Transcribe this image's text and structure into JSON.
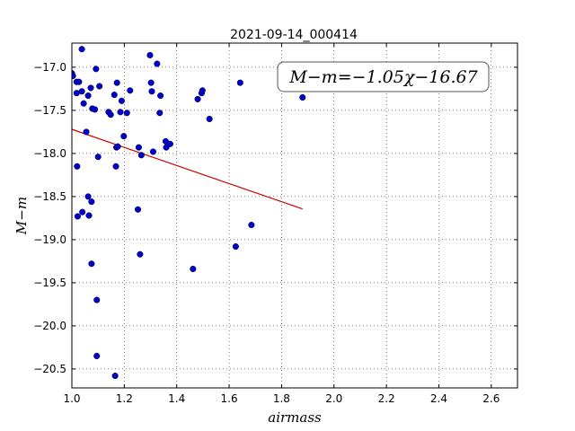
{
  "chart_data": {
    "type": "scatter",
    "title": "2021-09-14_000414",
    "xlabel": "airmass",
    "ylabel": "M−m",
    "annotation": "M−m=−1.05χ−16.67",
    "xlim": [
      1.0,
      2.7
    ],
    "ylim": [
      -20.72,
      -16.72
    ],
    "y_inverted": true,
    "grid": true,
    "x_ticks": [
      1.0,
      1.2,
      1.4,
      1.6,
      1.8,
      2.0,
      2.2,
      2.4,
      2.6
    ],
    "x_tick_labels": [
      "1.0",
      "1.2",
      "1.4",
      "1.6",
      "1.8",
      "2.0",
      "2.2",
      "2.4",
      "2.6"
    ],
    "y_ticks": [
      -17.0,
      -17.5,
      -18.0,
      -18.5,
      -19.0,
      -19.5,
      -20.0,
      -20.5
    ],
    "y_tick_labels": [
      "−17.0",
      "−17.5",
      "−18.0",
      "−18.5",
      "−19.0",
      "−19.5",
      "−20.0",
      "−20.5"
    ],
    "points": {
      "color": "#0000cc",
      "x": [
        1.0,
        1.004,
        1.018,
        1.027,
        1.038,
        1.018,
        1.038,
        1.045,
        1.055,
        1.062,
        1.072,
        1.078,
        1.092,
        1.088,
        1.105,
        1.14,
        1.148,
        1.162,
        1.172,
        1.185,
        1.19,
        1.198,
        1.21,
        1.222,
        1.17,
        1.175,
        1.168,
        1.255,
        1.265,
        1.1,
        1.02,
        1.04,
        1.062,
        1.075,
        1.022,
        1.065,
        1.252,
        1.26,
        1.075,
        1.095,
        1.095,
        1.165,
        1.298,
        1.302,
        1.305,
        1.31,
        1.325,
        1.338,
        1.335,
        1.358,
        1.36,
        1.375,
        1.48,
        1.495,
        1.498,
        1.525,
        1.642,
        1.685,
        1.625,
        1.462,
        1.88
      ],
      "y": [
        -17.07,
        -17.1,
        -17.17,
        -17.17,
        -17.28,
        -17.3,
        -16.79,
        -17.42,
        -17.75,
        -17.33,
        -17.24,
        -17.48,
        -17.02,
        -17.49,
        -17.22,
        -17.52,
        -17.55,
        -17.32,
        -17.18,
        -17.52,
        -17.39,
        -17.8,
        -17.53,
        -17.27,
        -17.93,
        -17.92,
        -18.15,
        -17.93,
        -18.02,
        -18.04,
        -18.15,
        -18.68,
        -18.5,
        -18.56,
        -18.73,
        -18.72,
        -18.65,
        -19.17,
        -19.28,
        -19.7,
        -20.35,
        -20.58,
        -16.86,
        -17.18,
        -17.28,
        -17.98,
        -16.96,
        -17.33,
        -17.53,
        -17.86,
        -17.93,
        -17.89,
        -17.37,
        -17.3,
        -17.27,
        -17.6,
        -17.18,
        -18.83,
        -19.08,
        -19.34,
        -17.35
      ]
    },
    "fit_line": {
      "color": "#cc0000",
      "x": [
        1.0,
        1.88
      ],
      "y": [
        -17.72,
        -18.644
      ]
    }
  }
}
